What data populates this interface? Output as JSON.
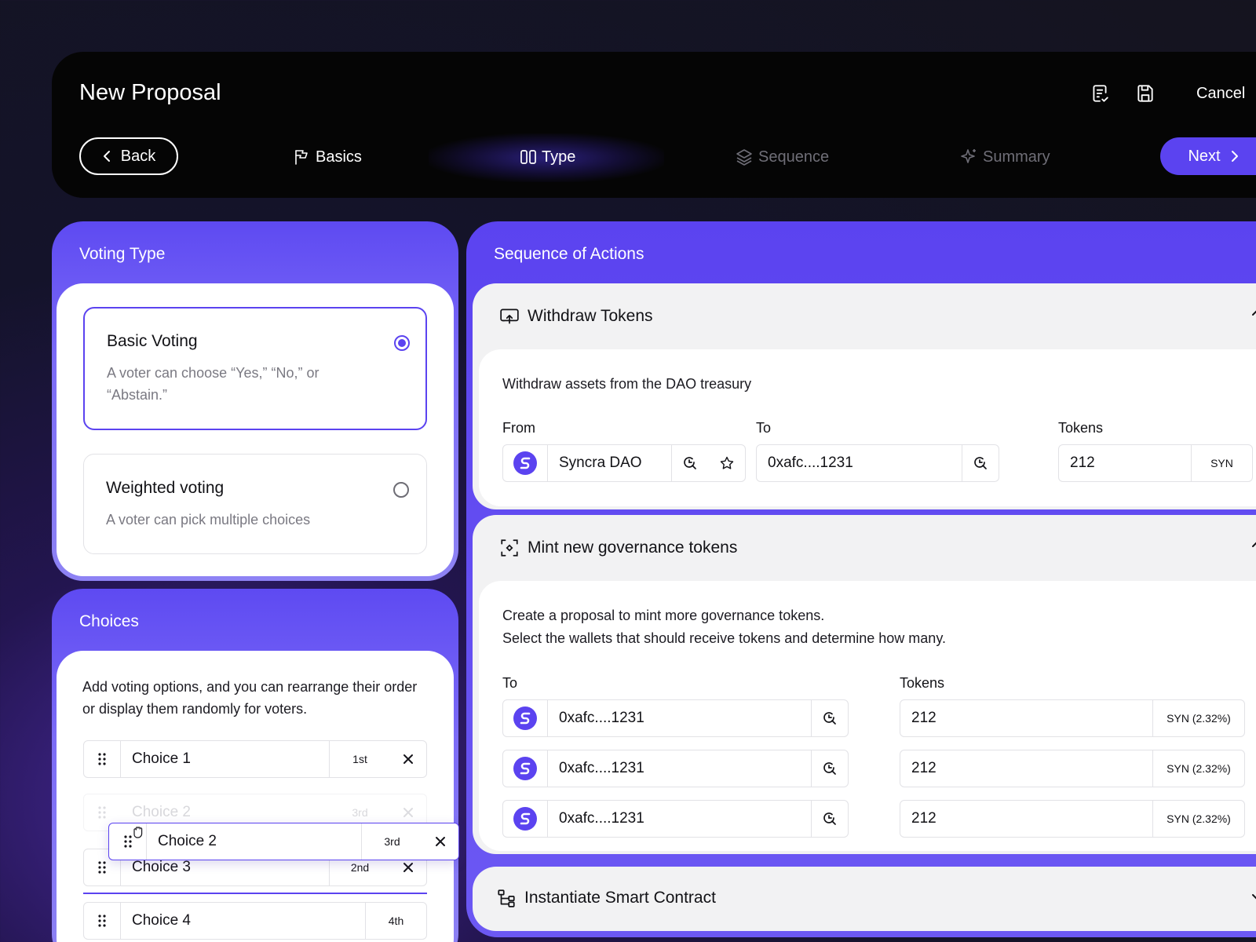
{
  "header": {
    "title": "New Proposal",
    "cancel_label": "Cancel",
    "back_label": "Back",
    "next_label": "Next",
    "steps": [
      {
        "label": "Basics",
        "state": "done"
      },
      {
        "label": "Type",
        "state": "active"
      },
      {
        "label": "Sequence",
        "state": "upcoming"
      },
      {
        "label": "Summary",
        "state": "upcoming"
      }
    ]
  },
  "colors": {
    "accent": "#5b43f0",
    "header_bg": "#050505"
  },
  "voting": {
    "title": "Voting Type",
    "options": [
      {
        "title": "Basic Voting",
        "description": "A voter can choose “Yes,” “No,” or “Abstain.”",
        "selected": true
      },
      {
        "title": "Weighted voting",
        "description": "A voter can pick multiple choices",
        "selected": false
      }
    ]
  },
  "choices": {
    "title": "Choices",
    "description": "Add voting options, and you can rearrange their order or display them randomly for voters.",
    "items": [
      {
        "label": "Choice 1",
        "rank": "1st"
      },
      {
        "label": "Choice 2",
        "rank": "3rd"
      },
      {
        "label": "Choice 3",
        "rank": "2nd"
      },
      {
        "label": "Choice 4",
        "rank": "4th"
      }
    ],
    "dragging": {
      "label": "Choice 2",
      "rank": "3rd"
    }
  },
  "sequence": {
    "title": "Sequence of Actions",
    "withdraw": {
      "title": "Withdraw Tokens",
      "description": "Withdraw assets from the DAO treasury",
      "from_label": "From",
      "from_value": "Syncra DAO",
      "to_label": "To",
      "to_value": "0xafc....1231",
      "tokens_label": "Tokens",
      "tokens_value": "212",
      "tokens_unit": "SYN"
    },
    "mint": {
      "title": "Mint new governance tokens",
      "description_line1": "Create a proposal to mint more governance tokens.",
      "description_line2": "Select the wallets that should receive tokens and determine how many.",
      "to_label": "To",
      "tokens_label": "Tokens",
      "rows": [
        {
          "address": "0xafc....1231",
          "tokens": "212",
          "unit": "SYN (2.32%)"
        },
        {
          "address": "0xafc....1231",
          "tokens": "212",
          "unit": "SYN (2.32%)"
        },
        {
          "address": "0xafc....1231",
          "tokens": "212",
          "unit": "SYN (2.32%)"
        }
      ]
    },
    "contract": {
      "title": "Instantiate Smart Contract"
    }
  }
}
